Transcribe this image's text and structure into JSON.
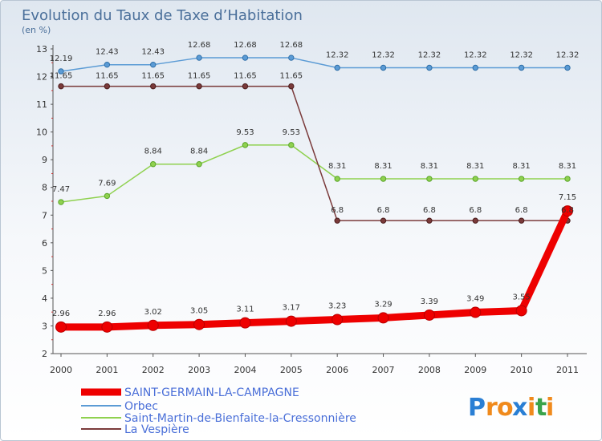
{
  "chart_data": {
    "type": "line",
    "title": "Evolution du Taux de Taxe d’Habitation",
    "subtitle": "(en %)",
    "categories": [
      "2000",
      "2001",
      "2002",
      "2003",
      "2004",
      "2005",
      "2006",
      "2007",
      "2008",
      "2009",
      "2010",
      "2011"
    ],
    "ylim": [
      2,
      13
    ],
    "yticks": [
      "2",
      "3",
      "4",
      "5",
      "6",
      "7",
      "8",
      "9",
      "10",
      "11",
      "12",
      "13"
    ],
    "grid": false,
    "legend_position": "bottom-left",
    "series": [
      {
        "name": "SAINT-GERMAIN-LA-CAMPAGNE",
        "color": "#ee0000",
        "values": [
          2.96,
          2.96,
          3.02,
          3.05,
          3.11,
          3.17,
          3.23,
          3.29,
          3.39,
          3.49,
          3.55,
          7.15
        ],
        "labels": [
          "2.96",
          "2.96",
          "3.02",
          "3.05",
          "3.11",
          "3.17",
          "3.23",
          "3.29",
          "3.39",
          "3.49",
          "3.55",
          "7.15"
        ]
      },
      {
        "name": "Orbec",
        "color": "#5b9bd5",
        "values": [
          12.19,
          12.43,
          12.43,
          12.68,
          12.68,
          12.68,
          12.32,
          12.32,
          12.32,
          12.32,
          12.32,
          12.32
        ],
        "labels": [
          "12.19",
          "12.43",
          "12.43",
          "12.68",
          "12.68",
          "12.68",
          "12.32",
          "12.32",
          "12.32",
          "12.32",
          "12.32",
          "12.32"
        ]
      },
      {
        "name": "Saint-Martin-de-Bienfaite-la-Cressonnière",
        "color": "#8fd14f",
        "values": [
          7.47,
          7.69,
          8.84,
          8.84,
          9.53,
          9.53,
          8.31,
          8.31,
          8.31,
          8.31,
          8.31,
          8.31
        ],
        "labels": [
          "7.47",
          "7.69",
          "8.84",
          "8.84",
          "9.53",
          "9.53",
          "8.31",
          "8.31",
          "8.31",
          "8.31",
          "8.31",
          "8.31"
        ]
      },
      {
        "name": "La Vespière",
        "color": "#7a3a3a",
        "values": [
          11.65,
          11.65,
          11.65,
          11.65,
          11.65,
          11.65,
          6.8,
          6.8,
          6.8,
          6.8,
          6.8,
          6.8
        ],
        "labels": [
          "11.65",
          "11.65",
          "11.65",
          "11.65",
          "11.65",
          "11.65",
          "6.8",
          "6.8",
          "6.8",
          "6.8",
          "6.8",
          "6.8"
        ]
      }
    ]
  },
  "brand": {
    "letters": [
      "P",
      "r",
      "o",
      "x",
      "i",
      "t",
      "i"
    ],
    "colors": [
      "#2a7fd4",
      "#f08a1c",
      "#f08a1c",
      "#2a7fd4",
      "#f08a1c",
      "#3aa34a",
      "#f08a1c"
    ]
  }
}
